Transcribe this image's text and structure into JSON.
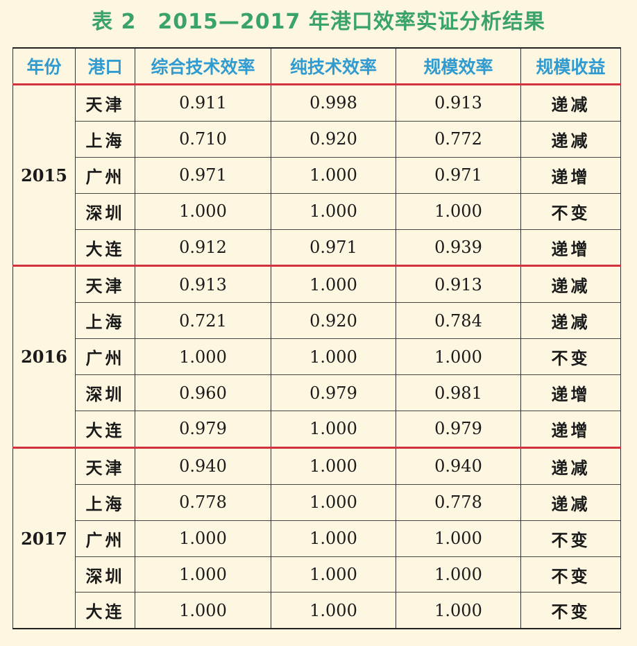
{
  "title": "表 2　2015—2017 年港口效率实证分析结果",
  "table": {
    "headers": [
      "年份",
      "港口",
      "综合技术效率",
      "纯技术效率",
      "规模效率",
      "规模收益"
    ],
    "groups": [
      {
        "year": "2015",
        "rows": [
          {
            "port": "天津",
            "te": "0.911",
            "pte": "0.998",
            "se": "0.913",
            "rts": "递减"
          },
          {
            "port": "上海",
            "te": "0.710",
            "pte": "0.920",
            "se": "0.772",
            "rts": "递减"
          },
          {
            "port": "广州",
            "te": "0.971",
            "pte": "1.000",
            "se": "0.971",
            "rts": "递增"
          },
          {
            "port": "深圳",
            "te": "1.000",
            "pte": "1.000",
            "se": "1.000",
            "rts": "不变"
          },
          {
            "port": "大连",
            "te": "0.912",
            "pte": "0.971",
            "se": "0.939",
            "rts": "递增"
          }
        ]
      },
      {
        "year": "2016",
        "rows": [
          {
            "port": "天津",
            "te": "0.913",
            "pte": "1.000",
            "se": "0.913",
            "rts": "递减"
          },
          {
            "port": "上海",
            "te": "0.721",
            "pte": "0.920",
            "se": "0.784",
            "rts": "递减"
          },
          {
            "port": "广州",
            "te": "1.000",
            "pte": "1.000",
            "se": "1.000",
            "rts": "不变"
          },
          {
            "port": "深圳",
            "te": "0.960",
            "pte": "0.979",
            "se": "0.981",
            "rts": "递增"
          },
          {
            "port": "大连",
            "te": "0.979",
            "pte": "1.000",
            "se": "0.979",
            "rts": "递增"
          }
        ]
      },
      {
        "year": "2017",
        "rows": [
          {
            "port": "天津",
            "te": "0.940",
            "pte": "1.000",
            "se": "0.940",
            "rts": "递减"
          },
          {
            "port": "上海",
            "te": "0.778",
            "pte": "1.000",
            "se": "0.778",
            "rts": "递减"
          },
          {
            "port": "广州",
            "te": "1.000",
            "pte": "1.000",
            "se": "1.000",
            "rts": "不变"
          },
          {
            "port": "深圳",
            "te": "1.000",
            "pte": "1.000",
            "se": "1.000",
            "rts": "不变"
          },
          {
            "port": "大连",
            "te": "1.000",
            "pte": "1.000",
            "se": "1.000",
            "rts": "不变"
          }
        ]
      }
    ]
  },
  "colors": {
    "title": "#3aa36a",
    "header_text": "#2f9bd0",
    "separator": "#d3313d",
    "background": "#fdf6e0"
  }
}
